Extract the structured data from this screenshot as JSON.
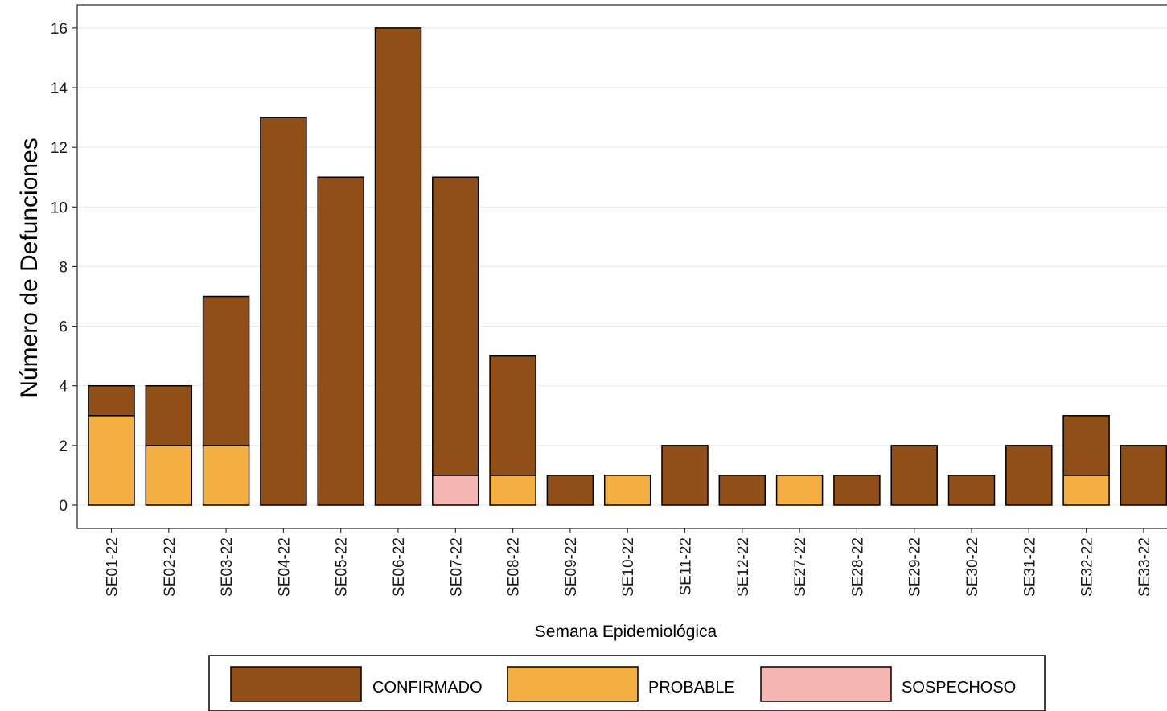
{
  "chart_data": {
    "type": "bar",
    "stacked": true,
    "title": "",
    "xlabel": "Semana Epidemiológica",
    "ylabel": "Número de Defunciones",
    "ylim": [
      -0.8,
      16.8
    ],
    "yticks": [
      0,
      2,
      4,
      6,
      8,
      10,
      12,
      14,
      16
    ],
    "grid": "horizontal",
    "legend_position": "bottom",
    "categories": [
      "SE01-22",
      "SE02-22",
      "SE03-22",
      "SE04-22",
      "SE05-22",
      "SE06-22",
      "SE07-22",
      "SE08-22",
      "SE09-22",
      "SE10-22",
      "SE11-22",
      "SE12-22",
      "SE27-22",
      "SE28-22",
      "SE29-22",
      "SE30-22",
      "SE31-22",
      "SE32-22",
      "SE33-22"
    ],
    "series": [
      {
        "name": "PROBABLE",
        "color": "#F4AF42",
        "values": [
          3,
          2,
          2,
          0,
          0,
          0,
          0,
          1,
          0,
          1,
          0,
          0,
          1,
          0,
          0,
          0,
          0,
          1,
          0
        ]
      },
      {
        "name": "SOSPECHOSO",
        "color": "#F4B6B0",
        "values": [
          0,
          0,
          0,
          0,
          0,
          0,
          1,
          0,
          0,
          0,
          0,
          0,
          0,
          0,
          0,
          0,
          0,
          0,
          0
        ]
      },
      {
        "name": "CONFIRMADO",
        "color": "#8F4F17",
        "values": [
          1,
          2,
          5,
          13,
          11,
          16,
          10,
          4,
          1,
          0,
          2,
          1,
          0,
          1,
          2,
          1,
          2,
          2,
          2
        ]
      }
    ],
    "legend": [
      {
        "name": "CONFIRMADO",
        "color": "#8F4F17"
      },
      {
        "name": "PROBABLE",
        "color": "#F4AF42"
      },
      {
        "name": "SOSPECHOSO",
        "color": "#F4B6B0"
      }
    ]
  }
}
